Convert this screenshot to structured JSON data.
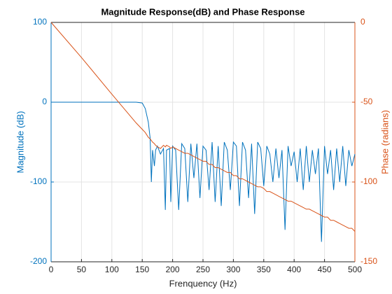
{
  "chart_data": {
    "type": "line",
    "title": "Magnitude Response(dB) and Phase Response",
    "x_label": "Frenquency (Hz)",
    "y_label": "Magnitude (dB)",
    "y2_label": "Phase (radians)",
    "x": [
      0,
      50,
      100,
      140,
      150,
      155,
      160,
      163,
      165,
      167,
      170,
      172,
      175,
      180,
      185,
      188,
      190,
      195,
      197,
      200,
      205,
      210,
      215,
      220,
      225,
      230,
      235,
      240,
      245,
      250,
      255,
      260,
      265,
      270,
      275,
      280,
      285,
      290,
      295,
      300,
      305,
      310,
      315,
      320,
      325,
      330,
      335,
      340,
      345,
      350,
      355,
      360,
      365,
      370,
      375,
      380,
      385,
      390,
      395,
      400,
      405,
      410,
      415,
      420,
      425,
      430,
      435,
      440,
      445,
      450,
      455,
      460,
      465,
      470,
      475,
      480,
      485,
      490,
      495,
      500
    ],
    "series": [
      {
        "name": "Magnitude (dB)",
        "color": "#0072bd",
        "axis": "y",
        "values": [
          0,
          0,
          0,
          0,
          -1,
          -8,
          -25,
          -45,
          -100,
          -60,
          -80,
          -60,
          -55,
          -65,
          -58,
          -135,
          -60,
          -58,
          -125,
          -55,
          -60,
          -135,
          -52,
          -58,
          -125,
          -52,
          -95,
          -52,
          -120,
          -55,
          -60,
          -110,
          -50,
          -125,
          -55,
          -130,
          -50,
          -60,
          -110,
          -50,
          -55,
          -130,
          -50,
          -60,
          -120,
          -52,
          -140,
          -50,
          -58,
          -105,
          -55,
          -65,
          -100,
          -58,
          -95,
          -60,
          -160,
          -55,
          -80,
          -62,
          -100,
          -58,
          -110,
          -55,
          -100,
          -60,
          -90,
          -58,
          -175,
          -55,
          -90,
          -60,
          -110,
          -58,
          -100,
          -55,
          -105,
          -60,
          -80,
          -65
        ]
      },
      {
        "name": "Phase (radians)",
        "color": "#d95319",
        "axis": "y2",
        "values": [
          0,
          -22,
          -45,
          -63,
          -67,
          -69,
          -72,
          -73,
          -74,
          -75,
          -76,
          -77,
          -78,
          -79,
          -77,
          -78,
          -77,
          -78,
          -79,
          -78,
          -79,
          -80,
          -81,
          -82,
          -82,
          -83,
          -84,
          -85,
          -86,
          -87,
          -87,
          -89,
          -89,
          -91,
          -91,
          -92,
          -93,
          -94,
          -94,
          -96,
          -96,
          -98,
          -98,
          -99,
          -100,
          -101,
          -102,
          -103,
          -103,
          -104,
          -106,
          -106,
          -107,
          -108,
          -109,
          -110,
          -111,
          -112,
          -112,
          -113,
          -114,
          -115,
          -116,
          -117,
          -117,
          -118,
          -119,
          -120,
          -121,
          -122,
          -122,
          -124,
          -124,
          -125,
          -126,
          -127,
          -128,
          -129,
          -129,
          -131
        ]
      }
    ],
    "xlim": [
      0,
      500
    ],
    "xticks": [
      0,
      50,
      100,
      150,
      200,
      250,
      300,
      350,
      400,
      450,
      500
    ],
    "ylim": [
      -200,
      100
    ],
    "yticks": [
      -200,
      -100,
      0,
      100
    ],
    "y2lim": [
      -150,
      0
    ],
    "y2ticks": [
      -150,
      -100,
      -50,
      0
    ],
    "grid": true
  }
}
